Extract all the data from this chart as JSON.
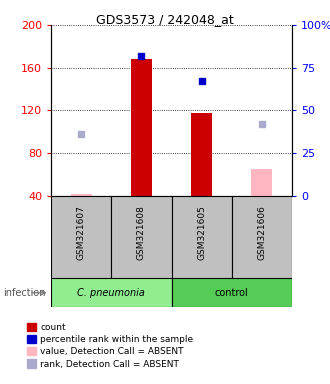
{
  "title": "GDS3573 / 242048_at",
  "samples": [
    "GSM321607",
    "GSM321608",
    "GSM321605",
    "GSM321606"
  ],
  "ylim_left": [
    40,
    200
  ],
  "ylim_right": [
    0,
    100
  ],
  "yticks_left": [
    40,
    80,
    120,
    160,
    200
  ],
  "yticks_right": [
    0,
    25,
    50,
    75,
    100
  ],
  "ytick_labels_right": [
    "0",
    "25",
    "50",
    "75",
    "100%"
  ],
  "red_bars": [
    null,
    168,
    118,
    null
  ],
  "pink_bars": [
    42,
    null,
    null,
    65
  ],
  "blue_squares_pct": [
    null,
    82,
    67,
    null
  ],
  "lavender_squares_pct": [
    36,
    null,
    null,
    42
  ],
  "bar_width": 0.35,
  "red_bar_color": "#CC0000",
  "pink_bar_color": "#FFB6C1",
  "blue_sq_color": "#0000CC",
  "lavender_sq_color": "#AAAACC",
  "legend_items": [
    {
      "color": "#CC0000",
      "label": "count"
    },
    {
      "color": "#0000CC",
      "label": "percentile rank within the sample"
    },
    {
      "color": "#FFB6C1",
      "label": "value, Detection Call = ABSENT"
    },
    {
      "color": "#AAAACC",
      "label": "rank, Detection Call = ABSENT"
    }
  ],
  "infection_label": "infection",
  "group_names": [
    "C. pneumonia",
    "control"
  ],
  "group_bg_colors": [
    "#90EE90",
    "#55CC55"
  ],
  "sample_box_color": "#C0C0C0"
}
